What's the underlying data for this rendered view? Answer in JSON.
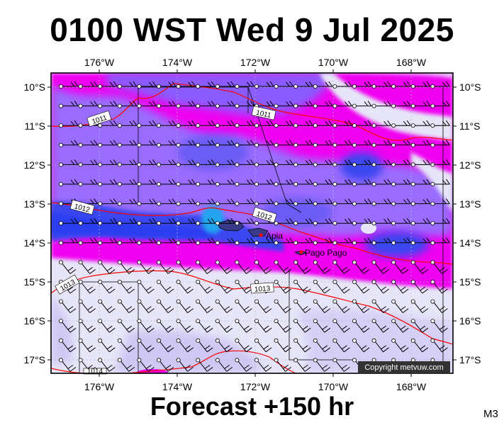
{
  "title": "0100 WST Wed 9 Jul 2025",
  "subtitle": "Forecast +150 hr",
  "model_code": "M3",
  "copyright": "Copyright metvuw.com",
  "map": {
    "lon_labels": [
      "176°W",
      "174°W",
      "172°W",
      "170°W",
      "168°W"
    ],
    "lat_labels": [
      "10°S",
      "11°S",
      "12°S",
      "13°S",
      "14°S",
      "15°S",
      "16°S",
      "17°S"
    ],
    "places": [
      {
        "name": "Apia",
        "lon": -171.75,
        "lat": -13.83
      },
      {
        "name": "Pago Pago",
        "lon": -170.7,
        "lat": -14.28
      }
    ],
    "isobar_labels": [
      "1011",
      "1011",
      "1012",
      "1012",
      "1013",
      "1013",
      "1014"
    ],
    "colors": {
      "ocean_calm": "#e6e6f8",
      "light_violet": "#cfc8f4",
      "violet": "#9a6cff",
      "magenta": "#f000f0",
      "blue": "#5a46f5",
      "deep_blue": "#2a3cf0",
      "cyan_blue": "#22a4ee",
      "isobar": "#ff0000"
    }
  }
}
